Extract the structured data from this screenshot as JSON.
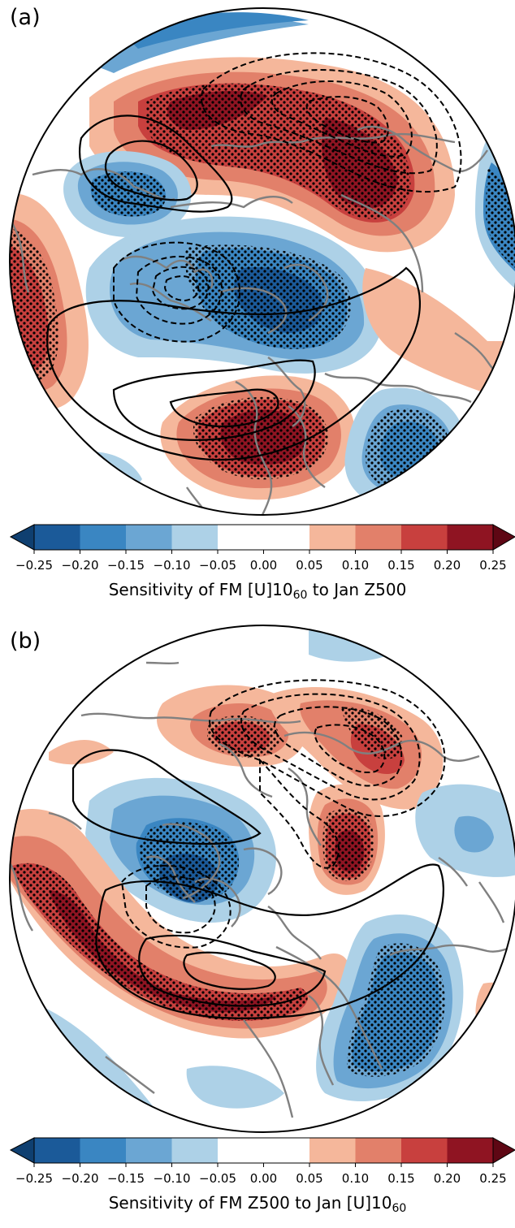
{
  "panels": [
    {
      "id": "a",
      "label": "(a)",
      "caption_main": "Sensitivity of FM [U]10",
      "caption_sub": "60",
      "caption_tail": " to Jan Z500"
    },
    {
      "id": "b",
      "label": "(b)",
      "caption_main": "Sensitivity of FM Z500 to Jan [U]10",
      "caption_sub": "60",
      "caption_tail": ""
    }
  ],
  "colorbar": {
    "ticks": [
      "−0.25",
      "−0.20",
      "−0.15",
      "−0.10",
      "−0.05",
      "0.00",
      "0.05",
      "0.10",
      "0.15",
      "0.20",
      "0.25"
    ],
    "levels": [
      -0.25,
      -0.2,
      -0.15,
      -0.1,
      -0.05,
      0.05,
      0.1,
      0.15,
      0.2,
      0.25
    ],
    "colors": {
      "under": "#0f3f70",
      "b1": "#1b5a99",
      "b2": "#3a86c2",
      "b3": "#6ba6d3",
      "b4": "#add1e7",
      "mid": "#ffffff",
      "r4": "#f5b79b",
      "r3": "#e2806a",
      "r2": "#c8403e",
      "r1": "#8f1422",
      "over": "#5e0714"
    }
  },
  "style": {
    "coast": "#808080",
    "contour": "#000000"
  }
}
